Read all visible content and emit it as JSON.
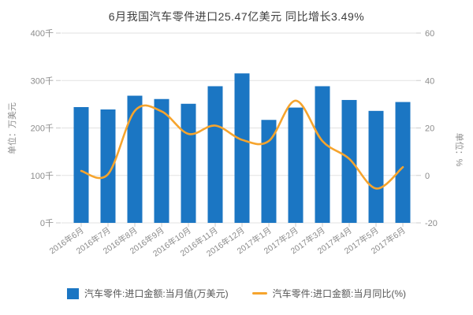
{
  "title": "6月我国汽车零件进口25.47亿美元 同比增长3.49%",
  "colors": {
    "bar": "#1b76c3",
    "line": "#f6a42d",
    "grid": "#e2e2e2",
    "tick": "#cccccc",
    "axis_text": "#8c8c8c",
    "title_text": "#3d3d3d",
    "legend_text": "#555555",
    "background": "#ffffff"
  },
  "legend": {
    "items": [
      {
        "label": "汽车零件:进口金额:当月值(万美元)",
        "marker": "bar-swatch"
      },
      {
        "label": "汽车零件:进口金额:当月同比(%)",
        "marker": "line-swatch"
      }
    ]
  },
  "chart_data": {
    "type": "bar",
    "subtype": "bar-line-combo",
    "title": "6月我国汽车零件进口25.47亿美元 同比增长3.49%",
    "categories": [
      "2016年6月",
      "2016年7月",
      "2016年8月",
      "2016年9月",
      "2016年10月",
      "2016年11月",
      "2016年12月",
      "2017年1月",
      "2017年2月",
      "2017年3月",
      "2017年4月",
      "2017年5月",
      "2017年6月"
    ],
    "series": [
      {
        "name": "汽车零件:进口金额:当月值(万美元)",
        "type": "bar",
        "axis": "left",
        "values": [
          244,
          239,
          268,
          261,
          251,
          288,
          315,
          217,
          243,
          288,
          259,
          236,
          254.7
        ]
      },
      {
        "name": "汽车零件:进口金额:当月同比(%)",
        "type": "line",
        "axis": "right",
        "values": [
          1.9,
          0.5,
          27.2,
          27,
          17.5,
          21,
          15,
          14.5,
          31.5,
          14.5,
          7,
          -5.5,
          3.49
        ]
      }
    ],
    "left_axis": {
      "title": "单位：万美元",
      "ticks": [
        0,
        100,
        200,
        300,
        400
      ],
      "tick_suffix": "千",
      "range": [
        0,
        400
      ]
    },
    "right_axis": {
      "title": "单位：%",
      "ticks": [
        -20,
        0,
        20,
        40,
        60
      ],
      "range": [
        -20,
        60
      ]
    },
    "grid": "horizontal",
    "legend_position": "bottom"
  }
}
